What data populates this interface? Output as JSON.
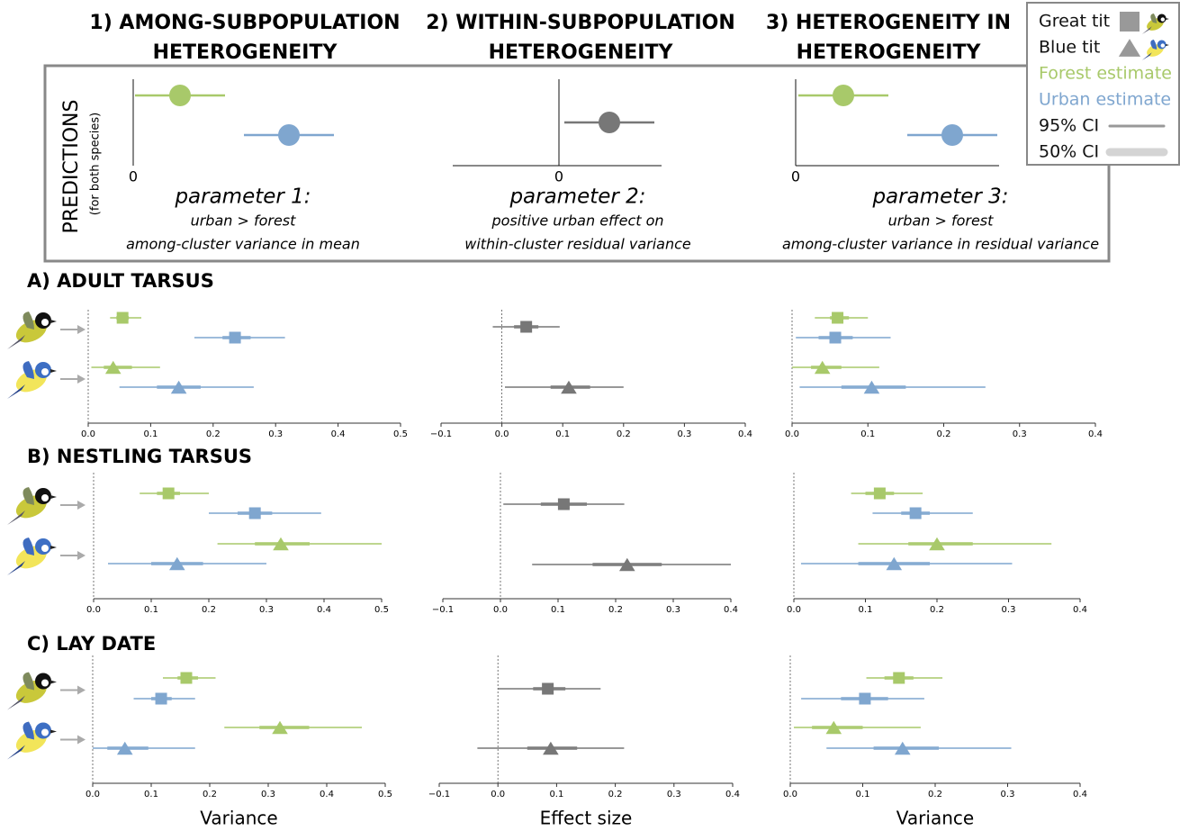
{
  "columns": [
    {
      "title_lines": [
        "1) AMONG-SUBPOPULATION",
        "HETEROGENEITY"
      ],
      "axis_label": 0,
      "parameter": "parameter 1:",
      "description_lines": [
        "urban > forest",
        "among-cluster variance in mean"
      ]
    },
    {
      "title_lines": [
        "2) WITHIN-SUBPOPULATION",
        "HETEROGENEITY"
      ],
      "axis_label": 0,
      "parameter": "parameter 2:",
      "description_lines": [
        "positive urban effect on",
        "within-cluster residual variance"
      ]
    },
    {
      "title_lines": [
        "3) HETEROGENEITY IN",
        "HETEROGENEITY"
      ],
      "axis_label": 0,
      "parameter": "parameter 3:",
      "description_lines": [
        "urban > forest",
        "among-cluster variance in residual variance"
      ]
    }
  ],
  "predictions_label": "PREDICTIONS",
  "predictions_sublabel": "(for both species)",
  "legend": [
    {
      "label": "Great tit",
      "shape": "square",
      "color": "#999999"
    },
    {
      "label": "Blue tit",
      "shape": "triangle",
      "color": "#999999"
    },
    {
      "label": "Forest estimate",
      "color": "#a8c96a"
    },
    {
      "label": "Urban estimate",
      "color": "#7fa6cf"
    },
    {
      "label": "95% CI",
      "line": "ci95",
      "color": "#999999"
    },
    {
      "label": "50% CI",
      "line": "ci50",
      "color": "#d4d4d4"
    }
  ],
  "chart_data": [
    {
      "type": "forest",
      "title": "A) ADULT TARSUS",
      "xlim": [
        0,
        0.5
      ],
      "xticks": [
        {
          "value": 0,
          "label": "0.0"
        },
        {
          "value": 0.1,
          "label": "0.1"
        },
        {
          "value": 0.2,
          "label": "0.2"
        },
        {
          "value": 0.3,
          "label": "0.3"
        },
        {
          "value": 0.4,
          "label": "0.4"
        },
        {
          "value": 0.5,
          "label": "0.5"
        }
      ],
      "points": [
        {
          "shape": "square",
          "color": "#a8c96a",
          "estimate": 0.055,
          "ci95": [
            0.035,
            0.085
          ],
          "ci50": [
            0.045,
            0.065
          ]
        },
        {
          "shape": "square",
          "color": "#7fa6cf",
          "estimate": 0.235,
          "ci95": [
            0.17,
            0.315
          ],
          "ci50": [
            0.215,
            0.26
          ]
        },
        {
          "shape": "triangle",
          "color": "#a8c96a",
          "estimate": 0.04,
          "ci95": [
            0.005,
            0.115
          ],
          "ci50": [
            0.025,
            0.07
          ]
        },
        {
          "shape": "triangle",
          "color": "#7fa6cf",
          "estimate": 0.145,
          "ci95": [
            0.05,
            0.265
          ],
          "ci50": [
            0.11,
            0.18
          ]
        }
      ]
    },
    {
      "type": "forest",
      "xlim": [
        -0.1,
        0.4
      ],
      "xticks": [
        {
          "value": -0.1,
          "label": "−0.1"
        },
        {
          "value": 0,
          "label": "0.0"
        },
        {
          "value": 0.1,
          "label": "0.1"
        },
        {
          "value": 0.2,
          "label": "0.2"
        },
        {
          "value": 0.3,
          "label": "0.3"
        },
        {
          "value": 0.4,
          "label": "0.4"
        }
      ],
      "points": [
        {
          "shape": "square",
          "color": "#777777",
          "estimate": 0.04,
          "ci95": [
            -0.015,
            0.095
          ],
          "ci50": [
            0.02,
            0.06
          ]
        },
        {
          "shape": "triangle",
          "color": "#777777",
          "estimate": 0.11,
          "ci95": [
            0.005,
            0.2
          ],
          "ci50": [
            0.08,
            0.145
          ]
        }
      ]
    },
    {
      "type": "forest",
      "xlim": [
        0,
        0.4
      ],
      "xticks": [
        {
          "value": 0,
          "label": "0.0"
        },
        {
          "value": 0.1,
          "label": "0.1"
        },
        {
          "value": 0.2,
          "label": "0.2"
        },
        {
          "value": 0.3,
          "label": "0.3"
        },
        {
          "value": 0.4,
          "label": "0.4"
        }
      ],
      "points": [
        {
          "shape": "square",
          "color": "#a8c96a",
          "estimate": 0.06,
          "ci95": [
            0.03,
            0.1
          ],
          "ci50": [
            0.05,
            0.075
          ]
        },
        {
          "shape": "square",
          "color": "#7fa6cf",
          "estimate": 0.057,
          "ci95": [
            0.005,
            0.13
          ],
          "ci50": [
            0.035,
            0.08
          ]
        },
        {
          "shape": "triangle",
          "color": "#a8c96a",
          "estimate": 0.04,
          "ci95": [
            0,
            0.115
          ],
          "ci50": [
            0.025,
            0.065
          ]
        },
        {
          "shape": "triangle",
          "color": "#7fa6cf",
          "estimate": 0.105,
          "ci95": [
            0.01,
            0.255
          ],
          "ci50": [
            0.065,
            0.15
          ]
        }
      ]
    },
    {
      "type": "forest",
      "title": "B) NESTLING TARSUS",
      "xlim": [
        0,
        0.5
      ],
      "xticks": [
        {
          "value": 0,
          "label": "0.0"
        },
        {
          "value": 0.1,
          "label": "0.1"
        },
        {
          "value": 0.2,
          "label": "0.2"
        },
        {
          "value": 0.3,
          "label": "0.3"
        },
        {
          "value": 0.4,
          "label": "0.4"
        },
        {
          "value": 0.5,
          "label": "0.5"
        }
      ],
      "points": [
        {
          "shape": "square",
          "color": "#a8c96a",
          "estimate": 0.13,
          "ci95": [
            0.08,
            0.2
          ],
          "ci50": [
            0.11,
            0.15
          ]
        },
        {
          "shape": "square",
          "color": "#7fa6cf",
          "estimate": 0.28,
          "ci95": [
            0.2,
            0.395
          ],
          "ci50": [
            0.25,
            0.31
          ]
        },
        {
          "shape": "triangle",
          "color": "#a8c96a",
          "estimate": 0.325,
          "ci95": [
            0.215,
            0.5
          ],
          "ci50": [
            0.28,
            0.375
          ]
        },
        {
          "shape": "triangle",
          "color": "#7fa6cf",
          "estimate": 0.145,
          "ci95": [
            0.025,
            0.3
          ],
          "ci50": [
            0.1,
            0.19
          ]
        }
      ]
    },
    {
      "type": "forest",
      "xlim": [
        -0.1,
        0.4
      ],
      "xticks": [
        {
          "value": -0.1,
          "label": "−0.1"
        },
        {
          "value": 0,
          "label": "0.0"
        },
        {
          "value": 0.1,
          "label": "0.1"
        },
        {
          "value": 0.2,
          "label": "0.2"
        },
        {
          "value": 0.3,
          "label": "0.3"
        },
        {
          "value": 0.4,
          "label": "0.4"
        }
      ],
      "points": [
        {
          "shape": "square",
          "color": "#777777",
          "estimate": 0.11,
          "ci95": [
            0.005,
            0.215
          ],
          "ci50": [
            0.07,
            0.15
          ]
        },
        {
          "shape": "triangle",
          "color": "#777777",
          "estimate": 0.22,
          "ci95": [
            0.055,
            0.4
          ],
          "ci50": [
            0.16,
            0.28
          ]
        }
      ]
    },
    {
      "type": "forest",
      "xlim": [
        0,
        0.4
      ],
      "xticks": [
        {
          "value": 0,
          "label": "0.0"
        },
        {
          "value": 0.1,
          "label": "0.1"
        },
        {
          "value": 0.2,
          "label": "0.2"
        },
        {
          "value": 0.3,
          "label": "0.3"
        },
        {
          "value": 0.4,
          "label": "0.4"
        }
      ],
      "points": [
        {
          "shape": "square",
          "color": "#a8c96a",
          "estimate": 0.12,
          "ci95": [
            0.08,
            0.18
          ],
          "ci50": [
            0.1,
            0.14
          ]
        },
        {
          "shape": "square",
          "color": "#7fa6cf",
          "estimate": 0.17,
          "ci95": [
            0.11,
            0.25
          ],
          "ci50": [
            0.15,
            0.19
          ]
        },
        {
          "shape": "triangle",
          "color": "#a8c96a",
          "estimate": 0.2,
          "ci95": [
            0.09,
            0.36
          ],
          "ci50": [
            0.16,
            0.25
          ]
        },
        {
          "shape": "triangle",
          "color": "#7fa6cf",
          "estimate": 0.14,
          "ci95": [
            0.01,
            0.305
          ],
          "ci50": [
            0.09,
            0.19
          ]
        }
      ]
    },
    {
      "type": "forest",
      "title": "C) LAY DATE",
      "xlabel": "Variance",
      "xlim": [
        0,
        0.5
      ],
      "xticks": [
        {
          "value": 0,
          "label": "0.0"
        },
        {
          "value": 0.1,
          "label": "0.1"
        },
        {
          "value": 0.2,
          "label": "0.2"
        },
        {
          "value": 0.3,
          "label": "0.3"
        },
        {
          "value": 0.4,
          "label": "0.4"
        },
        {
          "value": 0.5,
          "label": "0.5"
        }
      ],
      "points": [
        {
          "shape": "square",
          "color": "#a8c96a",
          "estimate": 0.16,
          "ci95": [
            0.12,
            0.21
          ],
          "ci50": [
            0.145,
            0.18
          ]
        },
        {
          "shape": "square",
          "color": "#7fa6cf",
          "estimate": 0.117,
          "ci95": [
            0.07,
            0.175
          ],
          "ci50": [
            0.1,
            0.135
          ]
        },
        {
          "shape": "triangle",
          "color": "#a8c96a",
          "estimate": 0.32,
          "ci95": [
            0.225,
            0.46
          ],
          "ci50": [
            0.285,
            0.37
          ]
        },
        {
          "shape": "triangle",
          "color": "#7fa6cf",
          "estimate": 0.055,
          "ci95": [
            0,
            0.175
          ],
          "ci50": [
            0.025,
            0.095
          ]
        }
      ]
    },
    {
      "type": "forest",
      "xlabel": "Effect size",
      "xlim": [
        -0.1,
        0.4
      ],
      "xticks": [
        {
          "value": -0.1,
          "label": "−0.1"
        },
        {
          "value": 0,
          "label": "0.0"
        },
        {
          "value": 0.1,
          "label": "0.1"
        },
        {
          "value": 0.2,
          "label": "0.2"
        },
        {
          "value": 0.3,
          "label": "0.3"
        },
        {
          "value": 0.4,
          "label": "0.4"
        }
      ],
      "points": [
        {
          "shape": "square",
          "color": "#777777",
          "estimate": 0.085,
          "ci95": [
            0,
            0.175
          ],
          "ci50": [
            0.06,
            0.115
          ]
        },
        {
          "shape": "triangle",
          "color": "#777777",
          "estimate": 0.09,
          "ci95": [
            -0.035,
            0.215
          ],
          "ci50": [
            0.05,
            0.135
          ]
        }
      ]
    },
    {
      "type": "forest",
      "xlabel": "Variance",
      "xlim": [
        0,
        0.4
      ],
      "xticks": [
        {
          "value": 0,
          "label": "0.0"
        },
        {
          "value": 0.1,
          "label": "0.1"
        },
        {
          "value": 0.2,
          "label": "0.2"
        },
        {
          "value": 0.3,
          "label": "0.3"
        },
        {
          "value": 0.4,
          "label": "0.4"
        }
      ],
      "points": [
        {
          "shape": "square",
          "color": "#a8c96a",
          "estimate": 0.15,
          "ci95": [
            0.105,
            0.21
          ],
          "ci50": [
            0.13,
            0.17
          ]
        },
        {
          "shape": "square",
          "color": "#7fa6cf",
          "estimate": 0.103,
          "ci95": [
            0.015,
            0.185
          ],
          "ci50": [
            0.07,
            0.135
          ]
        },
        {
          "shape": "triangle",
          "color": "#a8c96a",
          "estimate": 0.06,
          "ci95": [
            0.005,
            0.18
          ],
          "ci50": [
            0.03,
            0.1
          ]
        },
        {
          "shape": "triangle",
          "color": "#7fa6cf",
          "estimate": 0.155,
          "ci95": [
            0.05,
            0.305
          ],
          "ci50": [
            0.115,
            0.205
          ]
        }
      ]
    }
  ]
}
